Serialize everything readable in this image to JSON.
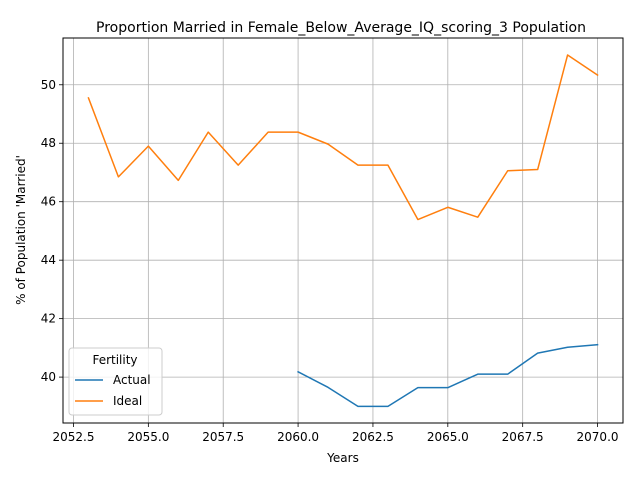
{
  "chart_data": {
    "type": "line",
    "title": "Proportion Married in Female_Below_Average_IQ_scoring_3 Population",
    "xlabel": "Years",
    "ylabel": "% of Population 'Married'",
    "xlim": [
      2052.15,
      2070.85
    ],
    "ylim": [
      38.43,
      51.6
    ],
    "xticks": [
      2052.5,
      2055.0,
      2057.5,
      2060.0,
      2062.5,
      2065.0,
      2067.5,
      2070.0
    ],
    "xtick_labels": [
      "2052.5",
      "2055.0",
      "2057.5",
      "2060.0",
      "2062.5",
      "2065.0",
      "2067.5",
      "2070.0"
    ],
    "yticks": [
      40,
      42,
      44,
      46,
      48,
      50
    ],
    "ytick_labels": [
      "40",
      "42",
      "44",
      "46",
      "48",
      "50"
    ],
    "grid": true,
    "legend": {
      "title": "Fertility",
      "placement": "lower-left"
    },
    "series": [
      {
        "name": "Actual",
        "color": "#1f77b4",
        "x": [
          2060,
          2061,
          2062,
          2063,
          2064,
          2065,
          2066,
          2067,
          2068,
          2069,
          2070
        ],
        "y": [
          40.18,
          39.65,
          39.0,
          39.0,
          39.64,
          39.64,
          40.1,
          40.1,
          40.82,
          41.02,
          41.11
        ]
      },
      {
        "name": "Ideal",
        "color": "#ff7f0e",
        "x": [
          2053,
          2054,
          2055,
          2056,
          2057,
          2058,
          2059,
          2060,
          2061,
          2062,
          2063,
          2064,
          2065,
          2066,
          2067,
          2068,
          2069,
          2070
        ],
        "y": [
          49.55,
          46.85,
          47.9,
          46.73,
          48.38,
          47.25,
          48.38,
          48.38,
          47.97,
          47.25,
          47.25,
          45.39,
          45.81,
          45.47,
          47.06,
          47.1,
          51.02,
          50.33
        ]
      }
    ]
  }
}
